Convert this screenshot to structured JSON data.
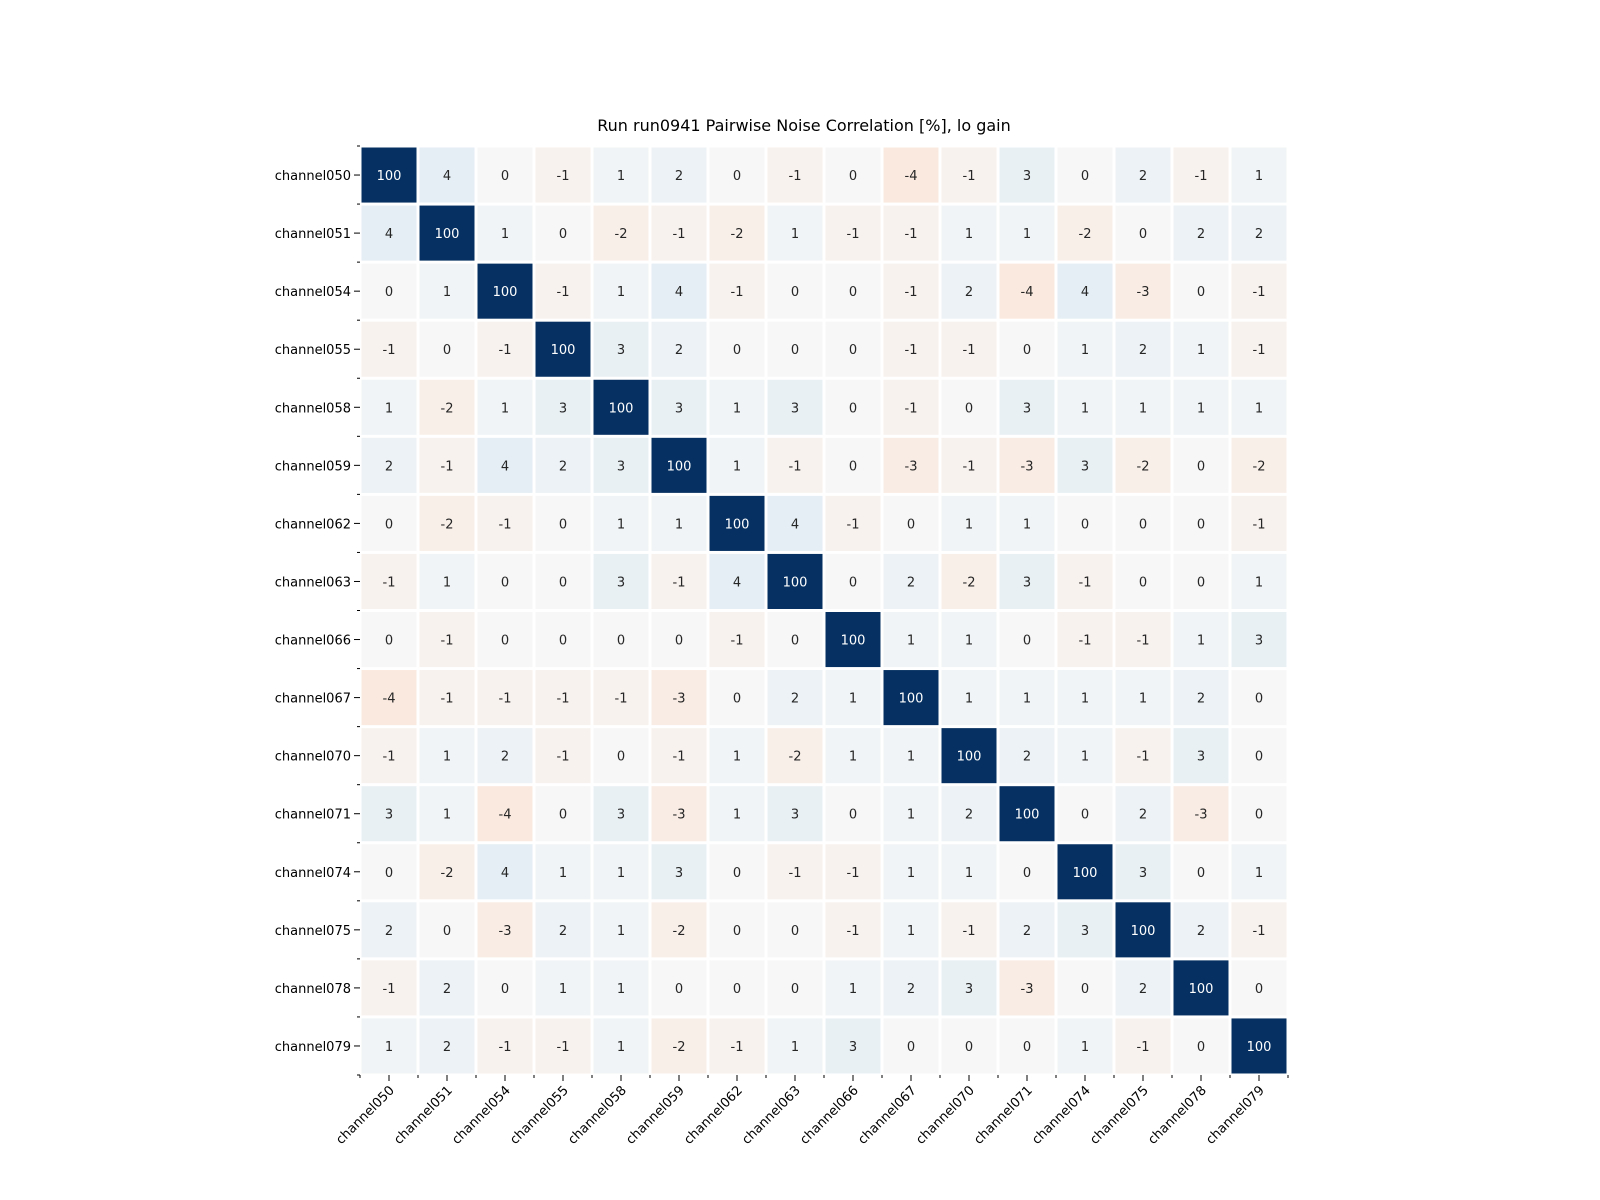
{
  "chart_data": {
    "type": "heatmap",
    "title": "Run run0941 Pairwise Noise Correlation [%], lo gain",
    "xlabel": "",
    "ylabel": "",
    "x_categories": [
      "channel050",
      "channel051",
      "channel054",
      "channel055",
      "channel058",
      "channel059",
      "channel062",
      "channel063",
      "channel066",
      "channel067",
      "channel070",
      "channel071",
      "channel074",
      "channel075",
      "channel078",
      "channel079"
    ],
    "y_categories": [
      "channel050",
      "channel051",
      "channel054",
      "channel055",
      "channel058",
      "channel059",
      "channel062",
      "channel063",
      "channel066",
      "channel067",
      "channel070",
      "channel071",
      "channel074",
      "channel075",
      "channel078",
      "channel079"
    ],
    "values": [
      [
        100,
        4,
        0,
        -1,
        1,
        2,
        0,
        -1,
        0,
        -4,
        -1,
        3,
        0,
        2,
        -1,
        1
      ],
      [
        4,
        100,
        1,
        0,
        -2,
        -1,
        -2,
        1,
        -1,
        -1,
        1,
        1,
        -2,
        0,
        2,
        2
      ],
      [
        0,
        1,
        100,
        -1,
        1,
        4,
        -1,
        0,
        0,
        -1,
        2,
        -4,
        4,
        -3,
        0,
        -1
      ],
      [
        -1,
        0,
        -1,
        100,
        3,
        2,
        0,
        0,
        0,
        -1,
        -1,
        0,
        1,
        2,
        1,
        -1
      ],
      [
        1,
        -2,
        1,
        3,
        100,
        3,
        1,
        3,
        0,
        -1,
        0,
        3,
        1,
        1,
        1,
        1
      ],
      [
        2,
        -1,
        4,
        2,
        3,
        100,
        1,
        -1,
        0,
        -3,
        -1,
        -3,
        3,
        -2,
        0,
        -2
      ],
      [
        0,
        -2,
        -1,
        0,
        1,
        1,
        100,
        4,
        -1,
        0,
        1,
        1,
        0,
        0,
        0,
        -1
      ],
      [
        -1,
        1,
        0,
        0,
        3,
        -1,
        4,
        100,
        0,
        2,
        -2,
        3,
        -1,
        0,
        0,
        1
      ],
      [
        0,
        -1,
        0,
        0,
        0,
        0,
        -1,
        0,
        100,
        1,
        1,
        0,
        -1,
        -1,
        1,
        3
      ],
      [
        -4,
        -1,
        -1,
        -1,
        -1,
        -3,
        0,
        2,
        1,
        100,
        1,
        1,
        1,
        1,
        2,
        0
      ],
      [
        -1,
        1,
        2,
        -1,
        0,
        -1,
        1,
        -2,
        1,
        1,
        100,
        2,
        1,
        -1,
        3,
        0
      ],
      [
        3,
        1,
        -4,
        0,
        3,
        -3,
        1,
        3,
        0,
        1,
        2,
        100,
        0,
        2,
        -3,
        0
      ],
      [
        0,
        -2,
        4,
        1,
        1,
        3,
        0,
        -1,
        -1,
        1,
        1,
        0,
        100,
        3,
        0,
        1
      ],
      [
        2,
        0,
        -3,
        2,
        1,
        -2,
        0,
        0,
        -1,
        1,
        -1,
        2,
        3,
        100,
        2,
        -1
      ],
      [
        -1,
        2,
        0,
        1,
        1,
        0,
        0,
        0,
        1,
        2,
        3,
        -3,
        0,
        2,
        100,
        0
      ],
      [
        1,
        2,
        -1,
        -1,
        1,
        -2,
        -1,
        1,
        3,
        0,
        0,
        0,
        1,
        -1,
        0,
        100
      ]
    ],
    "colormap": "RdBu (diverging, centered at 0)",
    "color_range": [
      -100,
      100
    ],
    "colors": {
      "positive_max": "#053061",
      "neutral": "#f7f7f7",
      "negative_max": "#67001f",
      "cell_gap": "#ffffff"
    },
    "grid": false,
    "legend": "none",
    "x_tick_rotation_deg": 45
  }
}
